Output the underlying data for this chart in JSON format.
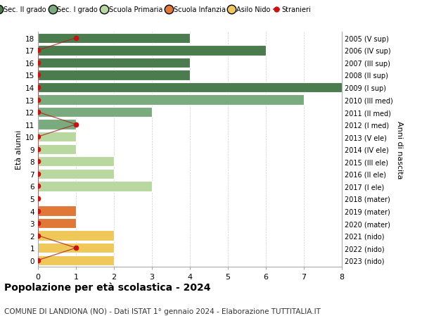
{
  "ages": [
    18,
    17,
    16,
    15,
    14,
    13,
    12,
    11,
    10,
    9,
    8,
    7,
    6,
    5,
    4,
    3,
    2,
    1,
    0
  ],
  "right_labels": [
    "2005 (V sup)",
    "2006 (IV sup)",
    "2007 (III sup)",
    "2008 (II sup)",
    "2009 (I sup)",
    "2010 (III med)",
    "2011 (II med)",
    "2012 (I med)",
    "2013 (V ele)",
    "2014 (IV ele)",
    "2015 (III ele)",
    "2016 (II ele)",
    "2017 (I ele)",
    "2018 (mater)",
    "2019 (mater)",
    "2020 (mater)",
    "2021 (nido)",
    "2022 (nido)",
    "2023 (nido)"
  ],
  "bar_values": [
    4,
    6,
    4,
    4,
    8,
    7,
    3,
    1,
    1,
    1,
    2,
    2,
    3,
    0,
    1,
    1,
    2,
    2,
    2
  ],
  "bar_colors": [
    "#4a7c4e",
    "#4a7c4e",
    "#4a7c4e",
    "#4a7c4e",
    "#4a7c4e",
    "#7aab7e",
    "#7aab7e",
    "#7aab7e",
    "#b8d8a0",
    "#b8d8a0",
    "#b8d8a0",
    "#b8d8a0",
    "#b8d8a0",
    "#e07838",
    "#e07838",
    "#e07838",
    "#f0c85a",
    "#f0c85a",
    "#f0c85a"
  ],
  "stranieri_x": [
    1,
    0,
    0,
    0,
    0,
    0,
    0,
    1,
    0,
    0,
    0,
    0,
    0,
    0,
    0,
    0,
    0,
    1,
    0
  ],
  "legend_labels": [
    "Sec. II grado",
    "Sec. I grado",
    "Scuola Primaria",
    "Scuola Infanzia",
    "Asilo Nido",
    "Stranieri"
  ],
  "legend_colors": [
    "#4a7c4e",
    "#7aab7e",
    "#b8d8a0",
    "#e07838",
    "#f0c85a",
    "#cc1111"
  ],
  "ylabel": "Età alunni",
  "ylabel_right": "Anni di nascita",
  "title": "Popolazione per età scolastica - 2024",
  "subtitle": "COMUNE DI LANDIONA (NO) - Dati ISTAT 1° gennaio 2024 - Elaborazione TUTTITALIA.IT",
  "xlim": [
    0,
    8
  ],
  "ylim": [
    -0.5,
    18.5
  ],
  "background_color": "#ffffff",
  "grid_color": "#cccccc"
}
